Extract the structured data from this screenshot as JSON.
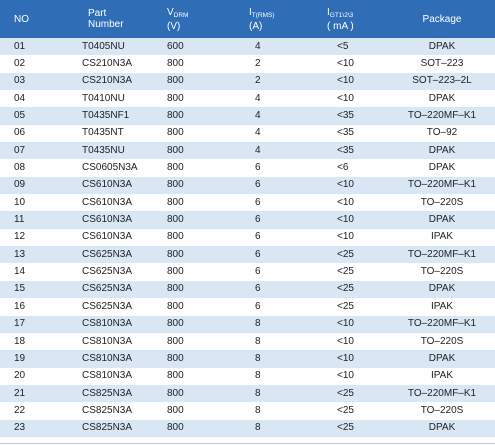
{
  "table": {
    "headers": {
      "no": "NO",
      "part_line1": "Part",
      "part_line2": "Number",
      "vdrm_main": "V",
      "vdrm_sub": "DRM",
      "vdrm_unit": "(V)",
      "it_main": "I",
      "it_sub": "T(RMS)",
      "it_unit": "(A)",
      "igt_main": "I",
      "igt_sub": "GT1\\2\\3",
      "igt_unit": "( mA )",
      "package": "Package"
    },
    "rows": [
      {
        "no": "01",
        "part": "T0405NU",
        "vdrm": "600",
        "it": "4",
        "igt": "<5",
        "package": "DPAK"
      },
      {
        "no": "02",
        "part": "CS210N3A",
        "vdrm": "800",
        "it": "2",
        "igt": "<10",
        "package": "SOT–223"
      },
      {
        "no": "03",
        "part": "CS210N3A",
        "vdrm": "800",
        "it": "2",
        "igt": "<10",
        "package": "SOT–223–2L"
      },
      {
        "no": "04",
        "part": "T0410NU",
        "vdrm": "800",
        "it": "4",
        "igt": "<10",
        "package": "DPAK"
      },
      {
        "no": "05",
        "part": "T0435NF1",
        "vdrm": "800",
        "it": "4",
        "igt": "<35",
        "package": "TO–220MF–K1"
      },
      {
        "no": "06",
        "part": "T0435NT",
        "vdrm": "800",
        "it": "4",
        "igt": "<35",
        "package": "TO–92"
      },
      {
        "no": "07",
        "part": "T0435NU",
        "vdrm": "800",
        "it": "4",
        "igt": "<35",
        "package": "DPAK"
      },
      {
        "no": "08",
        "part": "CS0605N3A",
        "vdrm": "800",
        "it": "6",
        "igt": "<6",
        "package": "DPAK"
      },
      {
        "no": "09",
        "part": "CS610N3A",
        "vdrm": "800",
        "it": "6",
        "igt": "<10",
        "package": "TO–220MF–K1"
      },
      {
        "no": "10",
        "part": "CS610N3A",
        "vdrm": "800",
        "it": "6",
        "igt": "<10",
        "package": "TO–220S"
      },
      {
        "no": "11",
        "part": "CS610N3A",
        "vdrm": "800",
        "it": "6",
        "igt": "<10",
        "package": "DPAK"
      },
      {
        "no": "12",
        "part": "CS610N3A",
        "vdrm": "800",
        "it": "6",
        "igt": "<10",
        "package": "IPAK"
      },
      {
        "no": "13",
        "part": "CS625N3A",
        "vdrm": "800",
        "it": "6",
        "igt": "<25",
        "package": "TO–220MF–K1"
      },
      {
        "no": "14",
        "part": "CS625N3A",
        "vdrm": "800",
        "it": "6",
        "igt": "<25",
        "package": "TO–220S"
      },
      {
        "no": "15",
        "part": "CS625N3A",
        "vdrm": "800",
        "it": "6",
        "igt": "<25",
        "package": "DPAK"
      },
      {
        "no": "16",
        "part": "CS625N3A",
        "vdrm": "800",
        "it": "6",
        "igt": "<25",
        "package": "IPAK"
      },
      {
        "no": "17",
        "part": "CS810N3A",
        "vdrm": "800",
        "it": "8",
        "igt": "<10",
        "package": "TO–220MF–K1"
      },
      {
        "no": "18",
        "part": "CS810N3A",
        "vdrm": "800",
        "it": "8",
        "igt": "<10",
        "package": "TO–220S"
      },
      {
        "no": "19",
        "part": "CS810N3A",
        "vdrm": "800",
        "it": "8",
        "igt": "<10",
        "package": "DPAK"
      },
      {
        "no": "20",
        "part": "CS810N3A",
        "vdrm": "800",
        "it": "8",
        "igt": "<10",
        "package": "IPAK"
      },
      {
        "no": "21",
        "part": "CS825N3A",
        "vdrm": "800",
        "it": "8",
        "igt": "<25",
        "package": "TO–220MF–K1"
      },
      {
        "no": "22",
        "part": "CS825N3A",
        "vdrm": "800",
        "it": "8",
        "igt": "<25",
        "package": "TO–220S"
      },
      {
        "no": "23",
        "part": "CS825N3A",
        "vdrm": "800",
        "it": "8",
        "igt": "<25",
        "package": "DPAK"
      }
    ]
  },
  "colors": {
    "header_bg": "#2f6db6",
    "header_text": "#ffffff",
    "row_alt_bg": "#d9e6f4",
    "row_bg": "#ffffff",
    "text": "#222222"
  }
}
